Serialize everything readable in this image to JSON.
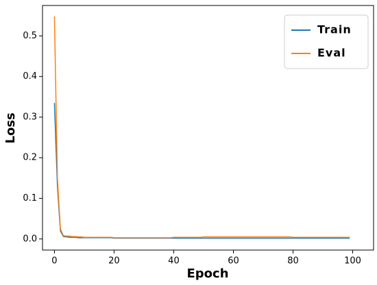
{
  "chart_data": {
    "type": "line",
    "x_label": "Epoch",
    "y_label": "Loss",
    "x": [
      0,
      1,
      2,
      3,
      4,
      5,
      6,
      7,
      8,
      9,
      10,
      11,
      12,
      13,
      14,
      15,
      16,
      17,
      18,
      19,
      20,
      21,
      22,
      23,
      24,
      25,
      26,
      27,
      28,
      29,
      30,
      31,
      32,
      33,
      34,
      35,
      36,
      37,
      38,
      39,
      40,
      41,
      42,
      43,
      44,
      45,
      46,
      47,
      48,
      49,
      50,
      51,
      52,
      53,
      54,
      55,
      56,
      57,
      58,
      59,
      60,
      61,
      62,
      63,
      64,
      65,
      66,
      67,
      68,
      69,
      70,
      71,
      72,
      73,
      74,
      75,
      76,
      77,
      78,
      79,
      80,
      81,
      82,
      83,
      84,
      85,
      86,
      87,
      88,
      89,
      90,
      91,
      92,
      93,
      94,
      95,
      96,
      97,
      98,
      99
    ],
    "series": [
      {
        "name": "Train",
        "color": "#1f77b4",
        "values": [
          0.335,
          0.13,
          0.02,
          0.006,
          0.005,
          0.004,
          0.004,
          0.004,
          0.003,
          0.003,
          0.003,
          0.003,
          0.003,
          0.003,
          0.003,
          0.003,
          0.003,
          0.003,
          0.003,
          0.003,
          0.002,
          0.002,
          0.002,
          0.002,
          0.002,
          0.002,
          0.002,
          0.002,
          0.002,
          0.002,
          0.002,
          0.002,
          0.002,
          0.002,
          0.002,
          0.002,
          0.002,
          0.002,
          0.002,
          0.002,
          0.002,
          0.002,
          0.002,
          0.002,
          0.002,
          0.002,
          0.002,
          0.002,
          0.002,
          0.002,
          0.002,
          0.002,
          0.002,
          0.002,
          0.002,
          0.002,
          0.002,
          0.002,
          0.002,
          0.002,
          0.002,
          0.002,
          0.002,
          0.002,
          0.002,
          0.002,
          0.002,
          0.002,
          0.002,
          0.002,
          0.002,
          0.002,
          0.002,
          0.002,
          0.002,
          0.002,
          0.002,
          0.002,
          0.002,
          0.002,
          0.002,
          0.002,
          0.002,
          0.002,
          0.002,
          0.002,
          0.002,
          0.002,
          0.002,
          0.002,
          0.002,
          0.002,
          0.002,
          0.002,
          0.002,
          0.002,
          0.002,
          0.002,
          0.002,
          0.002
        ]
      },
      {
        "name": "Eval",
        "color": "#ff7f0e",
        "values": [
          0.548,
          0.15,
          0.025,
          0.008,
          0.007,
          0.007,
          0.006,
          0.006,
          0.005,
          0.005,
          0.004,
          0.004,
          0.004,
          0.004,
          0.004,
          0.004,
          0.004,
          0.004,
          0.004,
          0.004,
          0.003,
          0.003,
          0.003,
          0.003,
          0.003,
          0.003,
          0.003,
          0.003,
          0.003,
          0.003,
          0.003,
          0.003,
          0.003,
          0.003,
          0.003,
          0.003,
          0.003,
          0.003,
          0.003,
          0.003,
          0.004,
          0.004,
          0.004,
          0.004,
          0.004,
          0.004,
          0.004,
          0.004,
          0.004,
          0.004,
          0.005,
          0.005,
          0.005,
          0.005,
          0.005,
          0.005,
          0.005,
          0.005,
          0.005,
          0.005,
          0.005,
          0.005,
          0.005,
          0.005,
          0.005,
          0.005,
          0.005,
          0.005,
          0.005,
          0.005,
          0.005,
          0.005,
          0.005,
          0.005,
          0.005,
          0.005,
          0.005,
          0.005,
          0.005,
          0.005,
          0.004,
          0.004,
          0.004,
          0.004,
          0.004,
          0.004,
          0.004,
          0.004,
          0.004,
          0.004,
          0.004,
          0.004,
          0.004,
          0.004,
          0.004,
          0.004,
          0.004,
          0.004,
          0.004,
          0.004
        ]
      }
    ],
    "xlim": [
      -4,
      107
    ],
    "ylim": [
      -0.0274,
      0.575
    ],
    "xticks": [
      0,
      20,
      40,
      60,
      80,
      100
    ],
    "yticks": [
      {
        "value": 0,
        "label": "0.0"
      },
      {
        "value": 0.1,
        "label": "0.1"
      },
      {
        "value": 0.2,
        "label": "0.2"
      },
      {
        "value": 0.3,
        "label": "0.3"
      },
      {
        "value": 0.4,
        "label": "0.4"
      },
      {
        "value": 0.5,
        "label": "0.5"
      }
    ],
    "legend": "upper right"
  }
}
